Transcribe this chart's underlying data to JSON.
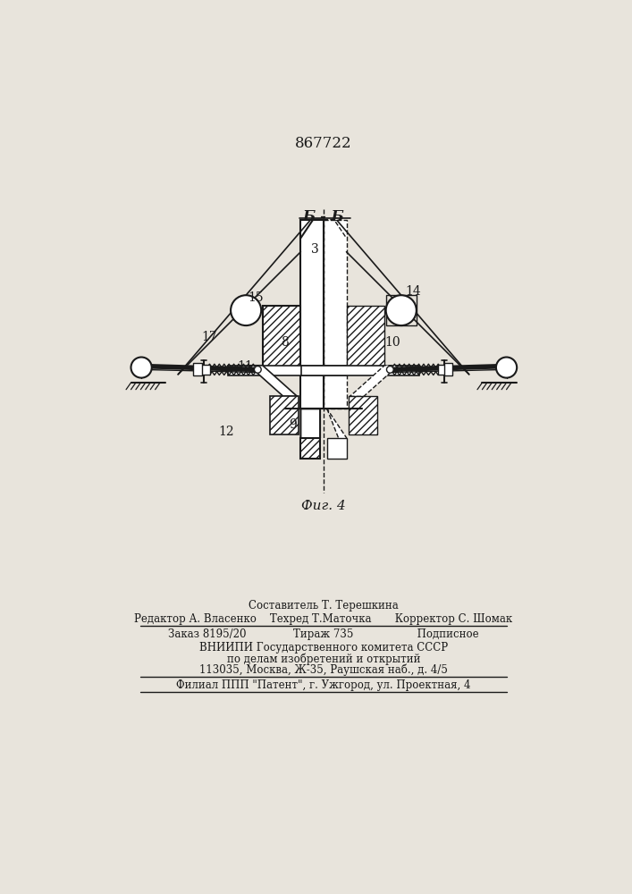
{
  "patent_number": "867722",
  "section_label": "Б - Б",
  "figure_label": "Фиг. 4",
  "bg_color": "#e8e4dc",
  "line_color": "#1a1a1a",
  "footer_lines": [
    "Составитель Т. Терешкина",
    "Редактор А. Власенко    Техред Т.Маточка       Корректор С. Шомак",
    "Заказ 8195/20              Тираж 735                   Подписное",
    "ВНИИПИ Государственного комитета СССР",
    "по делам изобретений и открытий",
    "113035, Москва, Ж-35, Раушская наб., д. 4/5",
    "Филиал ППП \"Патент\", г. Ужгород, ул. Проектная, 4"
  ]
}
